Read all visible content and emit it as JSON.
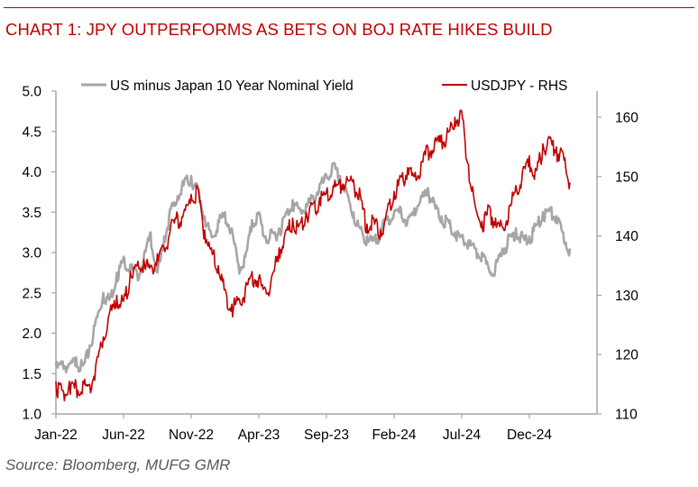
{
  "header": {
    "title": "CHART 1: JPY OUTPERFORMS AS BETS ON BOJ RATE HIKES BUILD"
  },
  "footer": {
    "source": "Source: Bloomberg, MUFG GMR"
  },
  "colors": {
    "spread": "#a6a6a6",
    "usdjpy": "#c00000",
    "axis": "#a6a6a6",
    "title": "#c00000"
  },
  "chart_data": {
    "type": "line",
    "title": "CHART 1: JPY OUTPERFORMS AS BETS ON BOJ RATE HIKES BUILD",
    "x_tick_labels": [
      "Jan-22",
      "Jun-22",
      "Nov-22",
      "Apr-23",
      "Sep-23",
      "Feb-24",
      "Jul-24",
      "Dec-24"
    ],
    "x_tick_positions_months": [
      0,
      5,
      10,
      15,
      20,
      25,
      30,
      35
    ],
    "x_range_months": [
      0,
      40
    ],
    "y_left": {
      "min": 1.0,
      "max": 5.0,
      "ticks": [
        "1.0",
        "1.5",
        "2.0",
        "2.5",
        "3.0",
        "3.5",
        "4.0",
        "4.5",
        "5.0"
      ]
    },
    "y_right": {
      "min": 110,
      "max": 165,
      "ticks": [
        "110",
        "120",
        "130",
        "140",
        "150",
        "160"
      ]
    },
    "legend": {
      "placement": "top"
    },
    "series": [
      {
        "name": "US minus Japan 10 Year Nominal Yield",
        "axis": "left",
        "color": "#a6a6a6",
        "points": [
          [
            0,
            1.6
          ],
          [
            0.5,
            1.65
          ],
          [
            1,
            1.62
          ],
          [
            1.5,
            1.7
          ],
          [
            2,
            1.6
          ],
          [
            2.5,
            1.85
          ],
          [
            3,
            2.2
          ],
          [
            3.5,
            2.5
          ],
          [
            4,
            2.45
          ],
          [
            4.5,
            2.75
          ],
          [
            5,
            2.95
          ],
          [
            5.5,
            2.85
          ],
          [
            6,
            2.75
          ],
          [
            6.5,
            2.95
          ],
          [
            7,
            3.25
          ],
          [
            7.5,
            2.75
          ],
          [
            8,
            3.2
          ],
          [
            8.5,
            3.55
          ],
          [
            9,
            3.7
          ],
          [
            9.5,
            3.9
          ],
          [
            10,
            3.95
          ],
          [
            10.5,
            3.8
          ],
          [
            11,
            3.45
          ],
          [
            11.5,
            3.2
          ],
          [
            12,
            3.4
          ],
          [
            12.5,
            3.5
          ],
          [
            13,
            3.3
          ],
          [
            13.5,
            2.85
          ],
          [
            14,
            2.95
          ],
          [
            14.5,
            3.4
          ],
          [
            15,
            3.5
          ],
          [
            15.5,
            3.2
          ],
          [
            16,
            3.25
          ],
          [
            16.5,
            3.3
          ],
          [
            17,
            3.5
          ],
          [
            17.5,
            3.65
          ],
          [
            18,
            3.55
          ],
          [
            18.5,
            3.6
          ],
          [
            19,
            3.7
          ],
          [
            19.5,
            3.85
          ],
          [
            20,
            3.95
          ],
          [
            20.5,
            4.1
          ],
          [
            21,
            3.95
          ],
          [
            21.5,
            3.75
          ],
          [
            22,
            3.5
          ],
          [
            22.5,
            3.3
          ],
          [
            23,
            3.2
          ],
          [
            23.5,
            3.15
          ],
          [
            24,
            3.3
          ],
          [
            24.5,
            3.45
          ],
          [
            25,
            3.5
          ],
          [
            25.5,
            3.55
          ],
          [
            26,
            3.4
          ],
          [
            26.5,
            3.55
          ],
          [
            27,
            3.7
          ],
          [
            27.5,
            3.8
          ],
          [
            28,
            3.6
          ],
          [
            28.5,
            3.45
          ],
          [
            29,
            3.4
          ],
          [
            29.5,
            3.25
          ],
          [
            30,
            3.2
          ],
          [
            30.5,
            3.15
          ],
          [
            31,
            3.05
          ],
          [
            31.5,
            3.0
          ],
          [
            32,
            2.8
          ],
          [
            32.5,
            2.85
          ],
          [
            33,
            3.05
          ],
          [
            33.5,
            3.2
          ],
          [
            34,
            3.3
          ],
          [
            34.5,
            3.2
          ],
          [
            35,
            3.2
          ],
          [
            35.5,
            3.35
          ],
          [
            36,
            3.5
          ],
          [
            36.5,
            3.55
          ],
          [
            37,
            3.45
          ],
          [
            37.5,
            3.25
          ],
          [
            38,
            3.05
          ]
        ]
      },
      {
        "name": "USDJPY - RHS",
        "axis": "right",
        "color": "#c00000",
        "points": [
          [
            0,
            115.5
          ],
          [
            0.5,
            114
          ],
          [
            1,
            115.5
          ],
          [
            1.5,
            115
          ],
          [
            2,
            115.5
          ],
          [
            2.5,
            115
          ],
          [
            3,
            119
          ],
          [
            3.5,
            123
          ],
          [
            4,
            127.5
          ],
          [
            4.5,
            130
          ],
          [
            5,
            129
          ],
          [
            5.5,
            134
          ],
          [
            6,
            135
          ],
          [
            6.5,
            136
          ],
          [
            7,
            135
          ],
          [
            7.5,
            137
          ],
          [
            8,
            138
          ],
          [
            8.5,
            142
          ],
          [
            9,
            143.5
          ],
          [
            9.5,
            144.5
          ],
          [
            10,
            147
          ],
          [
            10.5,
            148
          ],
          [
            11,
            141
          ],
          [
            11.5,
            138
          ],
          [
            12,
            135
          ],
          [
            12.5,
            131
          ],
          [
            13,
            128.5
          ],
          [
            13.5,
            129.5
          ],
          [
            14,
            131
          ],
          [
            14.5,
            134
          ],
          [
            15,
            133
          ],
          [
            15.5,
            131
          ],
          [
            16,
            133.5
          ],
          [
            16.5,
            138
          ],
          [
            17,
            141
          ],
          [
            17.5,
            143
          ],
          [
            18,
            142
          ],
          [
            18.5,
            144
          ],
          [
            19,
            145.5
          ],
          [
            19.5,
            146.5
          ],
          [
            20,
            147.5
          ],
          [
            20.5,
            148.5
          ],
          [
            21,
            149.5
          ],
          [
            21.5,
            150
          ],
          [
            22,
            149.5
          ],
          [
            22.5,
            147
          ],
          [
            23,
            142
          ],
          [
            23.5,
            143
          ],
          [
            24,
            141
          ],
          [
            24.5,
            144.5
          ],
          [
            25,
            147.5
          ],
          [
            25.5,
            150
          ],
          [
            26,
            151.5
          ],
          [
            26.5,
            150
          ],
          [
            27,
            152.5
          ],
          [
            27.5,
            155
          ],
          [
            28,
            156
          ],
          [
            28.5,
            157
          ],
          [
            29,
            157.5
          ],
          [
            29.5,
            160
          ],
          [
            30,
            161
          ],
          [
            30.5,
            152
          ],
          [
            31,
            145
          ],
          [
            31.5,
            142.5
          ],
          [
            32,
            145
          ],
          [
            32.5,
            143
          ],
          [
            33,
            141.5
          ],
          [
            33.5,
            145
          ],
          [
            34,
            148.5
          ],
          [
            34.5,
            151
          ],
          [
            35,
            153.5
          ],
          [
            35.5,
            151
          ],
          [
            36,
            155.5
          ],
          [
            36.5,
            156.5
          ],
          [
            37,
            155
          ],
          [
            37.5,
            154
          ],
          [
            38,
            149
          ]
        ]
      }
    ]
  }
}
